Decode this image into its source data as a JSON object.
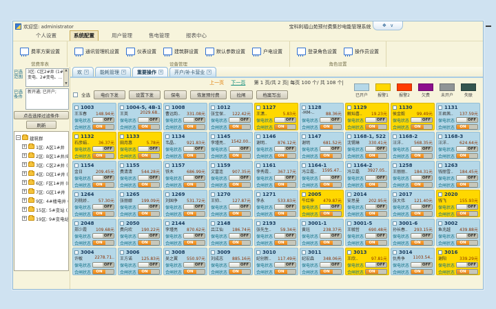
{
  "titlebar": {
    "welcome": "欢迎您: administrator",
    "app_title": "宝科利福山苑预付费集抄电能管理系统",
    "skin_glyph": "❖",
    "collapse_glyph": "∨"
  },
  "menu": {
    "items": [
      {
        "label": "个人设置",
        "active": false
      },
      {
        "label": "系统配置",
        "active": true
      },
      {
        "label": "用户管理",
        "active": false
      },
      {
        "label": "售电管理",
        "active": false
      },
      {
        "label": "报表中心",
        "active": false
      }
    ]
  },
  "ribbon": {
    "groups": [
      {
        "label": "营费率表",
        "buttons": [
          "费率方案设置"
        ]
      },
      {
        "label": "设备管理",
        "buttons": [
          "通讯管理机设置",
          "仪表设置",
          "建筑群设置",
          "默认参数设置",
          "户电设置"
        ]
      },
      {
        "label": "角色设置",
        "buttons": [
          "登录角色设置",
          "操作员设置"
        ]
      }
    ]
  },
  "sidebar": {
    "range_label": "已选范围",
    "range_text": "3区: C区2#井 (1#变电、2#变电、...",
    "cond_label": "已选条件",
    "cond_text": "新开通; 已开户;",
    "filter_button": "点击选择过滤条件",
    "refresh_button": "刷新",
    "tree_root": "建筑群",
    "tree_nodes": [
      "1区: A区1#井",
      "2区: B区1#井/B区1",
      "3区: C区2#井 (1#",
      "4区: D区1#井 (D区",
      "6区: F区1#井 (F区",
      "7区: G区1#井",
      "9区: 4#楼电井 (4#",
      "15区: 5#变站 (3#",
      "19区: 9#变电站 (2"
    ]
  },
  "tabs": {
    "items": [
      {
        "label": "欢",
        "active": false
      },
      {
        "label": "能耗管理",
        "active": false
      },
      {
        "label": "重要操作",
        "active": true
      },
      {
        "label": "开户/补卡营业",
        "active": false
      }
    ]
  },
  "pager": {
    "prev": "上一页",
    "next": "下一页",
    "info": "第 1 页/共 2 页| 每页 100 个/ 共 108 个|"
  },
  "toolbar": {
    "select_all": "全选",
    "buttons": [
      "电价下发",
      "设置下发",
      "保电",
      "恢复预付费",
      "拉闸",
      "档案写出"
    ]
  },
  "legend": {
    "items": [
      {
        "label": "已开户",
        "color": "#b5d8e8"
      },
      {
        "label": "报警1",
        "color": "#ffd800"
      },
      {
        "label": "报警2",
        "color": "#ff3c00"
      },
      {
        "label": "欠费",
        "color": "#8d0f8d"
      },
      {
        "label": "未开户",
        "color": "#8f9496"
      },
      {
        "label": "失联",
        "color": "#33554f"
      }
    ]
  },
  "meters": {
    "labels": {
      "supply": "保电状态",
      "switch": "合闸状态",
      "on": "ON",
      "off": "OFF"
    },
    "cards": [
      {
        "id": "1003",
        "name": "王玉春",
        "amount": "148.94元",
        "state": "open"
      },
      {
        "id": "1004-5, 4B-1",
        "name": "王英",
        "amount": "2029.68..",
        "state": "open"
      },
      {
        "id": "1008",
        "name": "曹远韵..",
        "amount": "331.08元",
        "state": "open"
      },
      {
        "id": "1012",
        "name": "张宝保..",
        "amount": "122.42元",
        "state": "open"
      },
      {
        "id": "1127",
        "name": "王潇..",
        "amount": "5.83元",
        "state": "alarm"
      },
      {
        "id": "1128",
        "name": "-MM-..",
        "amount": "88.36元",
        "state": "open"
      },
      {
        "id": "1129",
        "name": "解灿喜..",
        "amount": "19.23元",
        "state": "alarm"
      },
      {
        "id": "1130",
        "name": "侯金毅",
        "amount": "99.49元",
        "state": "alarm"
      },
      {
        "id": "1131",
        "name": "王君茜..",
        "amount": "137.59元",
        "state": "open"
      },
      {
        "id": "1132",
        "name": "石彦娟..",
        "amount": "36.37元",
        "state": "alarm"
      },
      {
        "id": "1133",
        "name": "田月惠",
        "amount": "5.78元",
        "state": "alarm"
      },
      {
        "id": "1134",
        "name": "韦晶..",
        "amount": "921.83元",
        "state": "open"
      },
      {
        "id": "1145",
        "name": "李瑾亮..",
        "amount": "1542.00..",
        "state": "open"
      },
      {
        "id": "1146",
        "name": "谢明..",
        "amount": "876.12元",
        "state": "open"
      },
      {
        "id": "1147",
        "name": "谢明",
        "amount": "681.52元",
        "state": "open"
      },
      {
        "id": "1168-1, 522",
        "name": "沈锡琳",
        "amount": "330.41元",
        "state": "open"
      },
      {
        "id": "1168-2",
        "name": "汪洋..",
        "amount": "568.35元",
        "state": "open"
      },
      {
        "id": "1168-3",
        "name": "汪洋..",
        "amount": "624.64元",
        "state": "open"
      },
      {
        "id": "1154",
        "name": "金日",
        "amount": "209.45元",
        "state": "open"
      },
      {
        "id": "1155",
        "name": "费清清",
        "amount": "544.28元",
        "state": "open"
      },
      {
        "id": "1157",
        "name": "铁木",
        "amount": "686.99元",
        "state": "open"
      },
      {
        "id": "1159",
        "name": "文富连",
        "amount": "907.35元",
        "state": "open"
      },
      {
        "id": "1161",
        "name": "李秀霞..",
        "amount": "367.17元",
        "state": "open"
      },
      {
        "id": "1164-1",
        "name": "冯立磊..",
        "amount": "1595.47..",
        "state": "open"
      },
      {
        "id": "1164-2",
        "name": "冯立磊",
        "amount": "3927.05..",
        "state": "open"
      },
      {
        "id": "1258",
        "name": "王丽丽..",
        "amount": "184.31元",
        "state": "open"
      },
      {
        "id": "1263",
        "name": "钱丽雪..",
        "amount": "184.45元",
        "state": "open"
      },
      {
        "id": "1264",
        "name": "刘桃娇..",
        "amount": "57.30元",
        "state": "open"
      },
      {
        "id": "1265",
        "name": "张丽娜",
        "amount": "199.09元",
        "state": "open"
      },
      {
        "id": "1269",
        "name": "刘国争",
        "amount": "531.72元",
        "state": "open"
      },
      {
        "id": "1270",
        "name": "王帅..",
        "amount": "127.87元",
        "state": "open"
      },
      {
        "id": "1271",
        "name": "李永",
        "amount": "533.83元",
        "state": "open"
      },
      {
        "id": "2005",
        "name": "牛红伸",
        "amount": "479.87元",
        "state": "alarm"
      },
      {
        "id": "2014",
        "name": "安思曼",
        "amount": "202.95元",
        "state": "open"
      },
      {
        "id": "2017",
        "name": "张大伟",
        "amount": "121.40元",
        "state": "open"
      },
      {
        "id": "2020",
        "name": "钱飞",
        "amount": "155.93元",
        "state": "alarm"
      },
      {
        "id": "2048",
        "name": "郑少霞",
        "amount": "109.68元",
        "state": "open"
      },
      {
        "id": "2050",
        "name": "费向欢",
        "amount": "190.22元",
        "state": "open"
      },
      {
        "id": "2144",
        "name": "李瑾亮",
        "amount": "870.62元",
        "state": "open"
      },
      {
        "id": "2148",
        "name": "吕江仙",
        "amount": "186.74元",
        "state": "open"
      },
      {
        "id": "2193",
        "name": "张先生..",
        "amount": "59.34元",
        "state": "open"
      },
      {
        "id": "3001-1",
        "name": "黄珏",
        "amount": "238.37元",
        "state": "open"
      },
      {
        "id": "3001-5",
        "name": "王毓哲",
        "amount": "690.48元",
        "state": "open"
      },
      {
        "id": "3001-6",
        "name": "孙长春..",
        "amount": "293.15元",
        "state": "open"
      },
      {
        "id": "3002",
        "name": "鱼兆越",
        "amount": "439.88元",
        "state": "open"
      },
      {
        "id": "3004",
        "name": "许敏",
        "amount": "2278.71..",
        "state": "open"
      },
      {
        "id": "3006",
        "name": "王方诺",
        "amount": "125.83元",
        "state": "open"
      },
      {
        "id": "3008",
        "name": "吴之翼",
        "amount": "550.97元",
        "state": "open"
      },
      {
        "id": "3009",
        "name": "刘成志",
        "amount": "885.16元",
        "state": "open"
      },
      {
        "id": "3010",
        "name": "纪创新..",
        "amount": "117.49元",
        "state": "open"
      },
      {
        "id": "3011",
        "name": "纪宏森",
        "amount": "348.06元",
        "state": "open"
      },
      {
        "id": "3013",
        "name": "王欣..",
        "amount": "97.81元",
        "state": "alarm"
      },
      {
        "id": "3014",
        "name": "仇秀争",
        "amount": "1103.54..",
        "state": "open"
      },
      {
        "id": "3016",
        "name": "谢阳",
        "amount": "339.29元",
        "state": "alarm"
      }
    ]
  }
}
